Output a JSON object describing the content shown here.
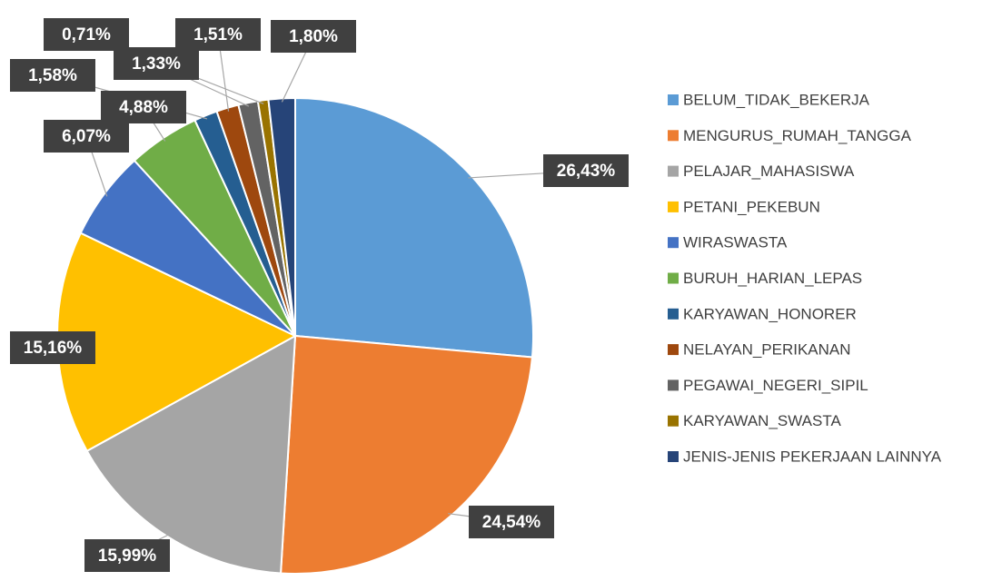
{
  "chart_data": {
    "type": "pie",
    "categories": [
      "BELUM_TIDAK_BEKERJA",
      "MENGURUS_RUMAH_TANGGA",
      "PELAJAR_MAHASISWA",
      "PETANI_PEKEBUN",
      "WIRASWASTA",
      "BURUH_HARIAN_LEPAS",
      "KARYAWAN_HONORER",
      "NELAYAN_PERIKANAN",
      "PEGAWAI_NEGERI_SIPIL",
      "KARYAWAN_SWASTA",
      "JENIS-JENIS PEKERJAAN LAINNYA"
    ],
    "values": [
      26.43,
      24.54,
      15.99,
      15.16,
      6.07,
      4.88,
      1.58,
      1.51,
      1.33,
      0.71,
      1.8
    ],
    "value_labels": [
      "26,43%",
      "24,54%",
      "15,99%",
      "15,16%",
      "6,07%",
      "4,88%",
      "1,58%",
      "1,51%",
      "1,33%",
      "0,71%",
      "1,80%"
    ],
    "colors": [
      "#5b9bd5",
      "#ed7d31",
      "#a5a5a5",
      "#ffc000",
      "#4472c4",
      "#70ad47",
      "#255e91",
      "#9e480e",
      "#636363",
      "#997300",
      "#264478"
    ],
    "legend": "right"
  }
}
